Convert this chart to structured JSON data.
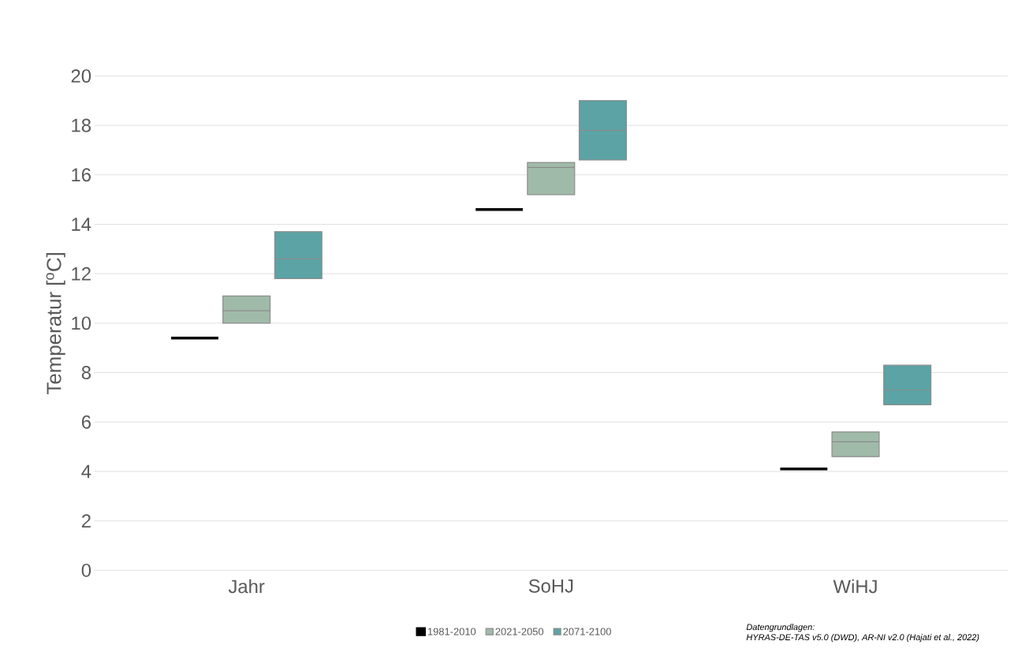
{
  "chart_data": {
    "type": "box",
    "ylabel": "Temperatur [$^{o}$C]",
    "categories": [
      "Jahr",
      "SoHJ",
      "WiHJ"
    ],
    "series": [
      {
        "name": "1981-2010",
        "color": "#000000",
        "boxes": [
          {
            "low": 9.4,
            "q1": 9.4,
            "median": 9.4,
            "q3": 9.4,
            "high": 9.4
          },
          {
            "low": 14.6,
            "q1": 14.6,
            "median": 14.6,
            "q3": 14.6,
            "high": 14.6
          },
          {
            "low": 4.1,
            "q1": 4.1,
            "median": 4.1,
            "q3": 4.1,
            "high": 4.1
          }
        ]
      },
      {
        "name": "2021-2050",
        "color": "#a0baa9",
        "boxes": [
          {
            "low": 10.0,
            "q1": 10.0,
            "median": 10.5,
            "q3": 11.1,
            "high": 11.1
          },
          {
            "low": 15.2,
            "q1": 15.2,
            "median": 16.3,
            "q3": 16.5,
            "high": 16.5
          },
          {
            "low": 4.6,
            "q1": 4.6,
            "median": 5.2,
            "q3": 5.6,
            "high": 5.6
          }
        ]
      },
      {
        "name": "2071-2100",
        "color": "#5ba3a5",
        "boxes": [
          {
            "low": 11.8,
            "q1": 11.8,
            "median": 12.6,
            "q3": 13.7,
            "high": 13.7
          },
          {
            "low": 16.6,
            "q1": 16.6,
            "median": 17.8,
            "q3": 19.0,
            "high": 19.0
          },
          {
            "low": 6.7,
            "q1": 6.7,
            "median": 7.3,
            "q3": 8.3,
            "high": 8.3
          }
        ]
      }
    ],
    "ylim": [
      0,
      20
    ],
    "yticks": [
      0,
      2,
      4,
      6,
      8,
      10,
      12,
      14,
      16,
      18,
      20
    ],
    "grid": "y",
    "legend": "bottom",
    "annotations": [
      "Datengrundlagen:",
      "HYRAS-DE-TAS v5.0 (DWD), AR-NI v2.0 (Hajati et al., 2022)"
    ]
  }
}
